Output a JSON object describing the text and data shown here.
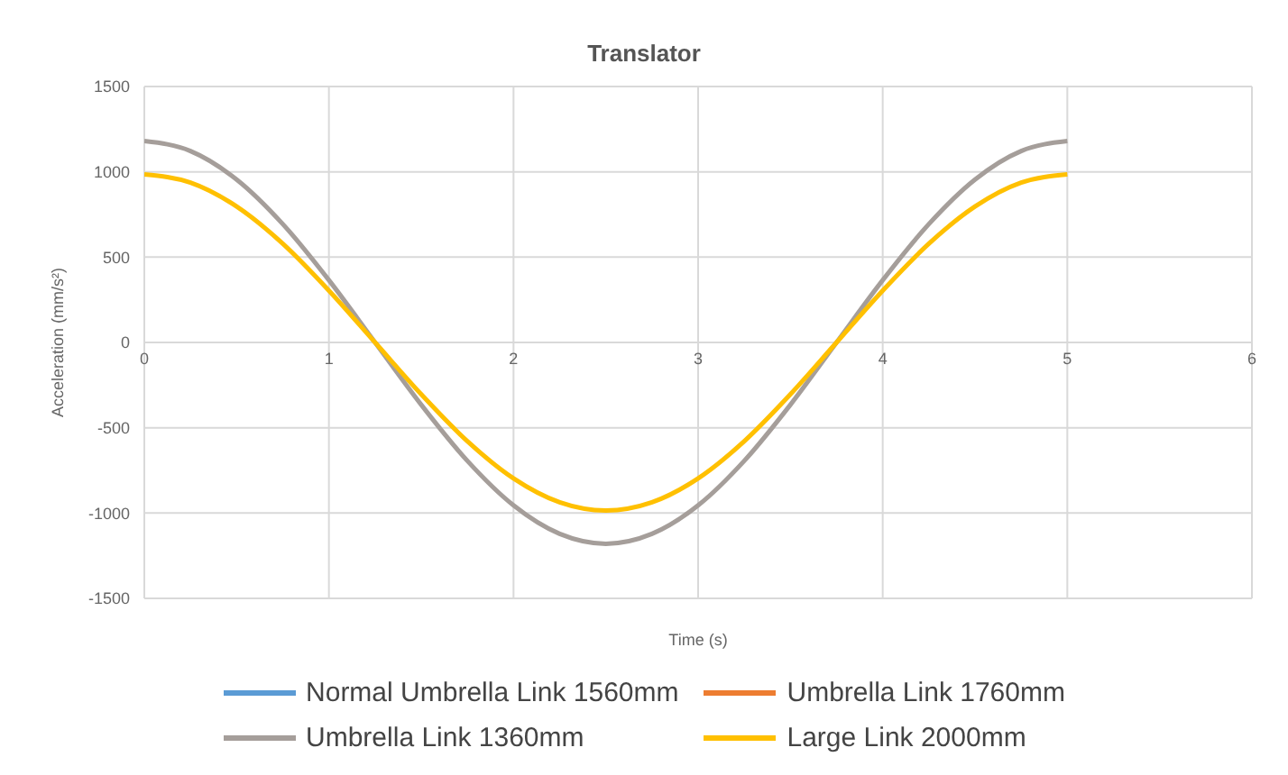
{
  "chart_data": {
    "type": "line",
    "title": "Translator",
    "xlabel": "Time (s)",
    "ylabel": "Acceleration (mm/s²)",
    "x": [
      0,
      0.25,
      0.5,
      0.75,
      1,
      1.25,
      1.5,
      1.75,
      2,
      2.25,
      2.5,
      2.75,
      3,
      3.25,
      3.5,
      3.75,
      4,
      4.25,
      4.5,
      4.75,
      5
    ],
    "series": [
      {
        "name": "Normal Umbrella Link 1560mm",
        "color": "#5b9bd5",
        "values": [
          null,
          null,
          null,
          null,
          null,
          null,
          null,
          null,
          null,
          null,
          null,
          null,
          null,
          null,
          null,
          null,
          null,
          null,
          null,
          null,
          null
        ]
      },
      {
        "name": "Umbrella Link 1760mm",
        "color": "#ed7d31",
        "values": [
          null,
          null,
          null,
          null,
          null,
          null,
          null,
          null,
          null,
          null,
          null,
          null,
          null,
          null,
          null,
          null,
          null,
          null,
          null,
          null,
          null
        ]
      },
      {
        "name": "Umbrella Link 1360mm",
        "color": "#a59e9a",
        "values": [
          1180,
          1122,
          955,
          694,
          365,
          0,
          -365,
          -694,
          -955,
          -1122,
          -1180,
          -1122,
          -955,
          -694,
          -365,
          0,
          365,
          694,
          955,
          1122,
          1180
        ]
      },
      {
        "name": "Large Link 2000mm",
        "color": "#ffc000",
        "values": [
          985,
          937,
          797,
          579,
          304,
          0,
          -304,
          -579,
          -797,
          -937,
          -985,
          -937,
          -797,
          -579,
          -304,
          0,
          304,
          579,
          797,
          937,
          985
        ]
      }
    ],
    "xlim": [
      0,
      6
    ],
    "xticks": [
      0,
      1,
      2,
      3,
      4,
      5,
      6
    ],
    "ylim": [
      -1500,
      1500
    ],
    "yticks": [
      -1500,
      -1000,
      -500,
      0,
      500,
      1000,
      1500
    ],
    "grid": true,
    "legend": "bottom",
    "marker": "none",
    "line_style": "solid"
  }
}
